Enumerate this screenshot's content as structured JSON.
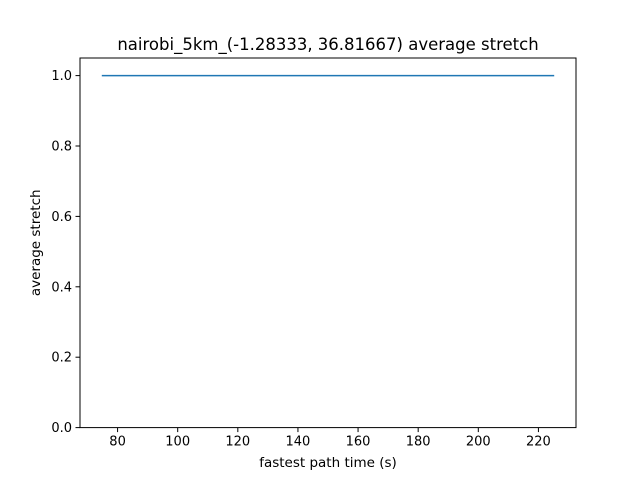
{
  "chart_data": {
    "type": "line",
    "title": "nairobi_5km_(-1.28333, 36.81667) average stretch",
    "xlabel": "fastest path time (s)",
    "ylabel": "average stretch",
    "xlim": [
      67.5,
      232.5
    ],
    "ylim": [
      0.0,
      1.05
    ],
    "xticks": [
      80,
      100,
      120,
      140,
      160,
      180,
      200,
      220
    ],
    "yticks": [
      0.0,
      0.2,
      0.4,
      0.6,
      0.8,
      1.0
    ],
    "xtick_labels": [
      "80",
      "100",
      "120",
      "140",
      "160",
      "180",
      "200",
      "220"
    ],
    "ytick_labels": [
      "0.0",
      "0.2",
      "0.4",
      "0.6",
      "0.8",
      "1.0"
    ],
    "grid": false,
    "series": [
      {
        "color": "#1f77b4",
        "x": [
          75,
          225
        ],
        "y": [
          1.0,
          1.0
        ]
      }
    ]
  }
}
